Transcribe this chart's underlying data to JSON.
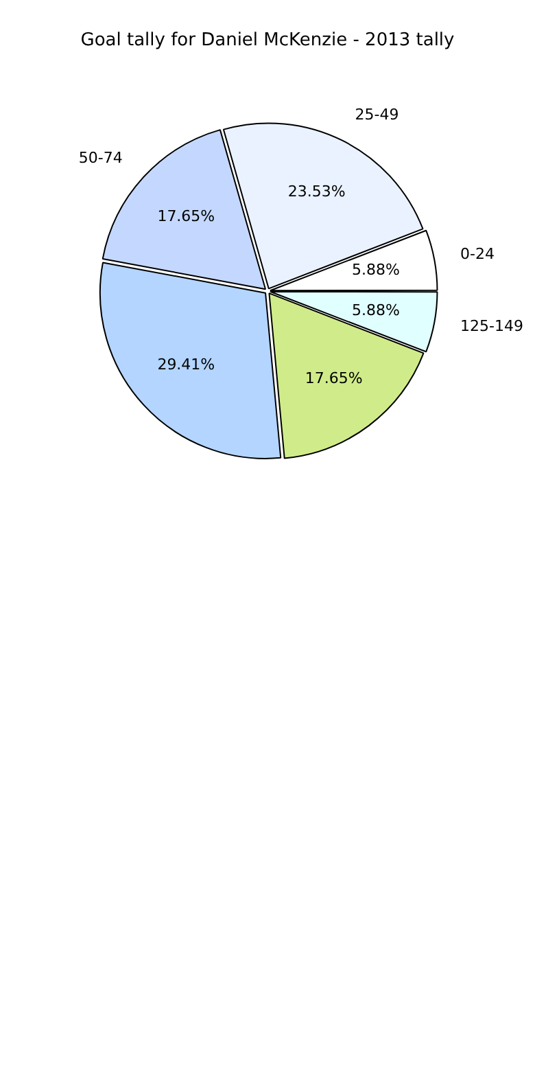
{
  "chart_data": {
    "type": "pie",
    "title": "Goal tally for Daniel McKenzie - 2013 tally",
    "categories": [
      "125-149",
      null,
      null,
      "50-74",
      "25-49",
      "0-24"
    ],
    "values": [
      5.88,
      17.65,
      29.41,
      17.65,
      23.53,
      5.88
    ],
    "value_labels": [
      "5.88%",
      "17.65%",
      "29.41%",
      "17.65%",
      "23.53%",
      "5.88%"
    ],
    "colors": [
      "#e0ffff",
      "#d0ec8a",
      "#b3d5ff",
      "#c4d8ff",
      "#eaf2ff",
      "#ffffff"
    ],
    "legend": false
  }
}
